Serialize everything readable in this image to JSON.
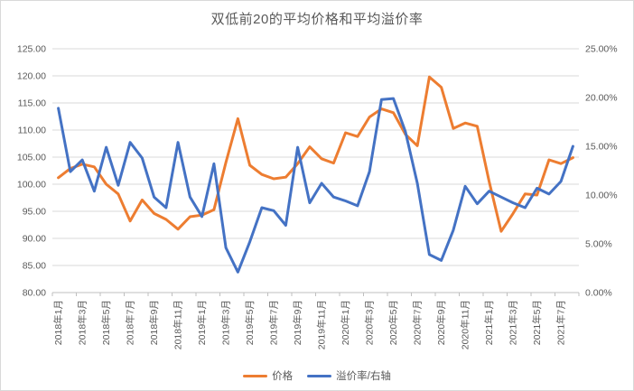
{
  "chart_data": {
    "type": "line",
    "title": "双低前20的平均价格和平均溢价率",
    "grid": true,
    "legend_position": "bottom",
    "n_points": 44,
    "x_label_every_n_points": 2,
    "x_tick_labels": [
      "2018年1月",
      "2018年3月",
      "2018年5月",
      "2018年7月",
      "2018年9月",
      "2018年11月",
      "2019年1月",
      "2019年3月",
      "2019年5月",
      "2019年7月",
      "2019年9月",
      "2019年11月",
      "2020年1月",
      "2020年3月",
      "2020年5月",
      "2020年7月",
      "2020年9月",
      "2020年11月",
      "2021年1月",
      "2021年3月",
      "2021年5月",
      "2021年7月"
    ],
    "left_axis": {
      "min": 80,
      "max": 125,
      "step": 5,
      "format": "0.00"
    },
    "right_axis": {
      "min": 0,
      "max": 25,
      "step": 5,
      "format": "0.00%"
    },
    "series": [
      {
        "name": "价格",
        "key": "price",
        "axis": "left",
        "color": "#ED7D31",
        "values": [
          101.2,
          102.9,
          103.7,
          103.2,
          100.0,
          98.2,
          93.2,
          97.1,
          94.6,
          93.5,
          91.7,
          94.0,
          94.3,
          95.3,
          104.0,
          112.1,
          103.5,
          101.8,
          101.0,
          101.3,
          103.8,
          106.9,
          104.7,
          103.9,
          109.5,
          108.8,
          112.4,
          113.9,
          113.2,
          109.2,
          107.1,
          119.8,
          117.9,
          110.3,
          111.3,
          110.7,
          100.5,
          91.3,
          94.6,
          98.2,
          98.0,
          104.5,
          103.8,
          104.9
        ]
      },
      {
        "name": "溢价率/右轴",
        "key": "premium",
        "axis": "right",
        "color": "#4472C4",
        "values": [
          18.9,
          12.4,
          13.6,
          10.4,
          14.9,
          11.0,
          15.4,
          13.8,
          9.8,
          8.7,
          15.4,
          9.8,
          7.8,
          13.2,
          4.6,
          2.1,
          5.2,
          8.7,
          8.4,
          6.9,
          14.9,
          9.2,
          11.2,
          9.8,
          9.4,
          8.9,
          12.4,
          19.8,
          19.9,
          16.5,
          11.2,
          3.9,
          3.3,
          6.4,
          10.9,
          9.1,
          10.4,
          9.8,
          9.2,
          8.7,
          10.7,
          10.1,
          11.4,
          15.0
        ]
      }
    ],
    "colors": {
      "gridline": "#D9D9D9",
      "axis_line": "#BFBFBF",
      "text": "#595959"
    }
  }
}
